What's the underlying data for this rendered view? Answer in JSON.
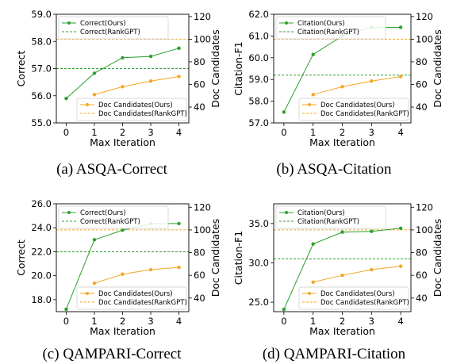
{
  "colors": {
    "ours_correct": "#2ca02c",
    "rankgpt_correct": "#2ca02c",
    "ours_docs": "#f5a623",
    "rankgpt_docs": "#f5a623"
  },
  "chart_data": [
    {
      "type": "line",
      "caption": "(a)  ASQA-Correct",
      "xlabel": "Max Iteration",
      "ylabel": "Correct",
      "y2label": "Doc Candidates",
      "x": [
        0,
        1,
        2,
        3,
        4
      ],
      "ylim": [
        55.0,
        59.0
      ],
      "yticks": [
        55.0,
        56.0,
        57.0,
        58.0,
        59.0
      ],
      "ytick_labels": [
        "55.0",
        "56.0",
        "57.0",
        "58.0",
        "59.0"
      ],
      "y2lim": [
        26,
        122
      ],
      "y2ticks": [
        40,
        60,
        80,
        100,
        120
      ],
      "series": [
        {
          "name": "Correct(Ours)",
          "values": [
            55.9,
            56.83,
            57.4,
            57.45,
            57.75
          ],
          "axis": "left"
        },
        {
          "name": "Correct(RankGPT)",
          "constant": 57.0,
          "axis": "left"
        },
        {
          "name": "Doc Candidates(Ours)",
          "x": [
            1,
            2,
            3,
            4
          ],
          "values": [
            51,
            58,
            63,
            67
          ],
          "axis": "right"
        },
        {
          "name": "Doc Candidates(RankGPT)",
          "constant": 100,
          "axis": "right"
        }
      ]
    },
    {
      "type": "line",
      "caption": "(b)  ASQA-Citation",
      "xlabel": "Max Iteration",
      "ylabel": "Citation-F1",
      "y2label": "Doc Candidates",
      "x": [
        0,
        1,
        2,
        3,
        4
      ],
      "ylim": [
        57.0,
        62.0
      ],
      "yticks": [
        57.0,
        58.0,
        59.0,
        60.0,
        61.0,
        62.0
      ],
      "ytick_labels": [
        "57.0",
        "58.0",
        "59.0",
        "60.0",
        "61.0",
        "62.0"
      ],
      "y2lim": [
        26,
        122
      ],
      "y2ticks": [
        40,
        60,
        80,
        100,
        120
      ],
      "series": [
        {
          "name": "Citation(Ours)",
          "values": [
            57.5,
            60.15,
            61.0,
            61.4,
            61.4
          ],
          "axis": "left"
        },
        {
          "name": "Citation(RankGPT)",
          "constant": 59.2,
          "axis": "left"
        },
        {
          "name": "Doc Candidates(Ours)",
          "x": [
            1,
            2,
            3,
            4
          ],
          "values": [
            51,
            58,
            63,
            67
          ],
          "axis": "right"
        },
        {
          "name": "Doc Candidates(RankGPT)",
          "constant": 100,
          "axis": "right"
        }
      ]
    },
    {
      "type": "line",
      "caption": "(c)  QAMPARI-Correct",
      "xlabel": "Max Iteration",
      "ylabel": "Correct",
      "y2label": "Doc Candidates",
      "x": [
        0,
        1,
        2,
        3,
        4
      ],
      "ylim": [
        17.0,
        26.0
      ],
      "yticks": [
        18.0,
        20.0,
        22.0,
        24.0,
        26.0
      ],
      "ytick_labels": [
        "18.0",
        "20.0",
        "22.0",
        "24.0",
        "26.0"
      ],
      "y2lim": [
        28,
        123
      ],
      "y2ticks": [
        40,
        60,
        80,
        100,
        120
      ],
      "series": [
        {
          "name": "Correct(Ours)",
          "values": [
            17.2,
            23.0,
            23.8,
            24.35,
            24.35
          ],
          "axis": "left"
        },
        {
          "name": "Correct(RankGPT)",
          "constant": 22.0,
          "axis": "left"
        },
        {
          "name": "Doc Candidates(Ours)",
          "x": [
            1,
            2,
            3,
            4
          ],
          "values": [
            53,
            61,
            65,
            67
          ],
          "axis": "right"
        },
        {
          "name": "Doc Candidates(RankGPT)",
          "constant": 100,
          "axis": "right"
        }
      ]
    },
    {
      "type": "line",
      "caption": "(d)  QAMPARI-Citation",
      "xlabel": "Max Iteration",
      "ylabel": "Citation-F1",
      "y2label": "Doc Candidates",
      "x": [
        0,
        1,
        2,
        3,
        4
      ],
      "ylim": [
        23.8,
        37.5
      ],
      "yticks": [
        25.0,
        30.0,
        35.0
      ],
      "ytick_labels": [
        "25.0",
        "30.0",
        "35.0"
      ],
      "y2lim": [
        28,
        123
      ],
      "y2ticks": [
        40,
        60,
        80,
        100,
        120
      ],
      "series": [
        {
          "name": "Citation(Ours)",
          "values": [
            24.1,
            32.4,
            33.9,
            34.0,
            34.4
          ],
          "axis": "left"
        },
        {
          "name": "Citation(RankGPT)",
          "constant": 30.5,
          "axis": "left"
        },
        {
          "name": "Doc Candidates(Ours)",
          "x": [
            1,
            2,
            3,
            4
          ],
          "values": [
            54,
            60,
            65,
            68
          ],
          "axis": "right"
        },
        {
          "name": "Doc Candidates(RankGPT)",
          "constant": 100,
          "axis": "right"
        }
      ]
    }
  ]
}
